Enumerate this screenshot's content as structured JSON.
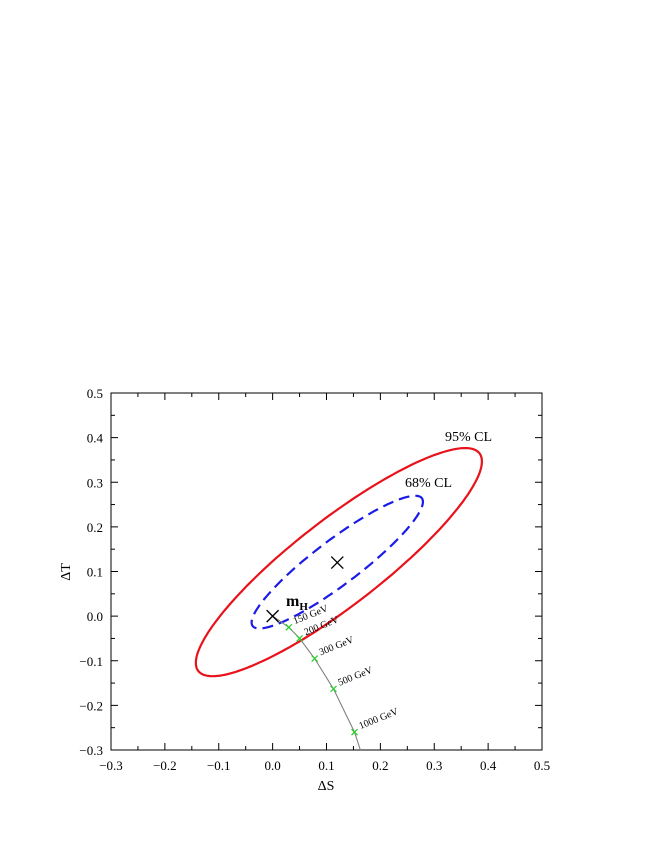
{
  "chart_data": {
    "type": "scatter",
    "title": "",
    "xlabel": "ΔS",
    "ylabel": "ΔT",
    "xlim": [
      -0.3,
      0.5
    ],
    "ylim": [
      -0.3,
      0.5
    ],
    "xticks": [
      "−0.3",
      "−0.2",
      "−0.1",
      "0.0",
      "0.1",
      "0.2",
      "0.3",
      "0.4",
      "0.5"
    ],
    "yticks": [
      "−0.3",
      "−0.2",
      "−0.1",
      "0.0",
      "0.1",
      "0.2",
      "0.3",
      "0.4",
      "0.5"
    ],
    "grid": false,
    "best_fit": {
      "x": 0.12,
      "y": 0.12
    },
    "reference_point": {
      "x": 0.0,
      "y": 0.0
    },
    "contours": [
      {
        "label": "95% CL",
        "color": "#e8121b",
        "style": "solid",
        "center": [
          0.123,
          0.121
        ],
        "x_extremes": [
          -0.146,
          0.385
        ],
        "slope": 0.85,
        "vertical_halfwidth": 0.12
      },
      {
        "label": "68% CL",
        "color": "#1b1be6",
        "style": "dashed",
        "center": [
          0.12,
          0.121
        ],
        "x_extremes": [
          -0.04,
          0.278
        ],
        "slope": 0.85,
        "vertical_halfwidth": 0.062
      }
    ],
    "mh_label": {
      "main": "m",
      "sub": "H"
    },
    "higgs_mass_curve": {
      "color": "#808080",
      "points": [
        {
          "x": 0.0,
          "y": 0.0
        },
        {
          "x": 0.03,
          "y": -0.025
        },
        {
          "x": 0.05,
          "y": -0.05
        },
        {
          "x": 0.078,
          "y": -0.095
        },
        {
          "x": 0.113,
          "y": -0.163
        },
        {
          "x": 0.152,
          "y": -0.26
        },
        {
          "x": 0.163,
          "y": -0.3
        }
      ]
    },
    "mass_markers": [
      {
        "label": "150 GeV",
        "x": 0.03,
        "y": -0.025,
        "color": "#22cc22"
      },
      {
        "label": "200 GeV",
        "x": 0.05,
        "y": -0.05,
        "color": "#22cc22"
      },
      {
        "label": "300 GeV",
        "x": 0.078,
        "y": -0.095,
        "color": "#22cc22"
      },
      {
        "label": "500 GeV",
        "x": 0.113,
        "y": -0.163,
        "color": "#22cc22"
      },
      {
        "label": "1000 GeV",
        "x": 0.152,
        "y": -0.26,
        "color": "#22cc22"
      }
    ]
  }
}
